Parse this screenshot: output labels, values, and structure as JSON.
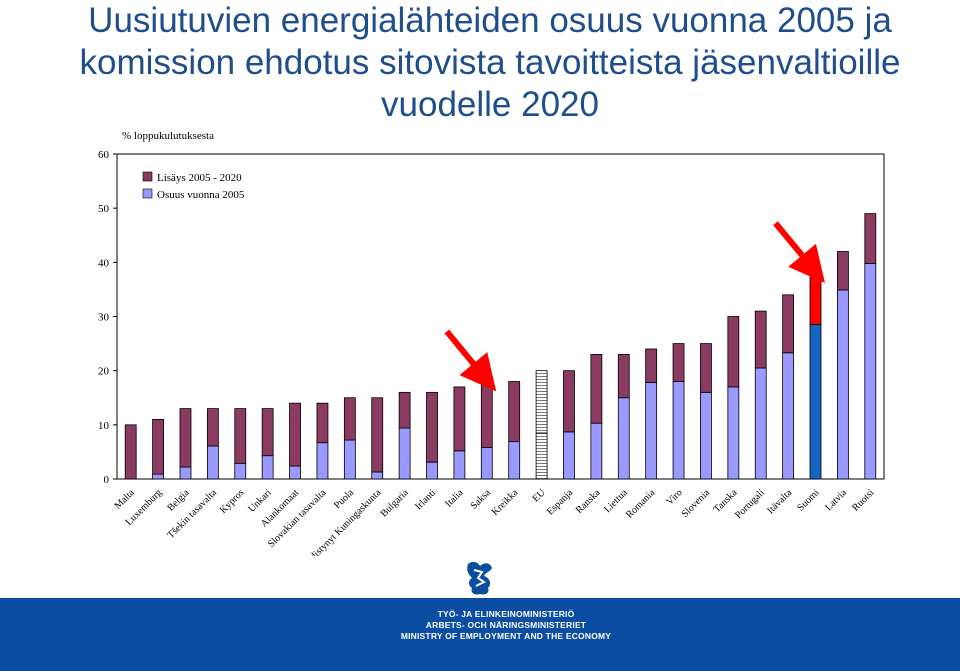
{
  "title_lines": [
    "Uusiutuvien energialähteiden osuus vuonna 2005 ja",
    "komission ehdotus sitovista tavoitteista jäsenvaltioille",
    "vuodelle 2020"
  ],
  "footer_lines": [
    "TYÖ- JA ELINKEINOMINISTERIÖ",
    "ARBETS- OCH NÄRINGSMINISTERIET",
    "MINISTRY OF EMPLOYMENT AND THE ECONOMY"
  ],
  "colors": {
    "title": "#1f4e8c",
    "increase": "#8b3a62",
    "share": "#9999ff",
    "highlight_share": "#1565c0",
    "highlight_increase": "#ff0000",
    "arrow": "#ff0000",
    "footer": "#0a4da2"
  },
  "chart_data": {
    "type": "bar",
    "stacked": true,
    "ylabel": "% loppukulutuksesta",
    "ylim": [
      0,
      60
    ],
    "yticks": [
      0,
      10,
      20,
      30,
      40,
      50,
      60
    ],
    "legend_position": "top-left",
    "grid": false,
    "categories": [
      "Malta",
      "Luxemburg",
      "Belgia",
      "Tšekin tasavalta",
      "Kypros",
      "Unkari",
      "Alankomaat",
      "Slovakian tasavalta",
      "Puola",
      "Yhdistynyt Kuningaskunta",
      "Bulgaria",
      "Irlanti",
      "Italia",
      "Saksa",
      "Kreikka",
      "EU",
      "Espanja",
      "Ranska",
      "Liettua",
      "Romania",
      "Viro",
      "Slovenia",
      "Tanska",
      "Portugali",
      "Itävalta",
      "Suomi",
      "Latvia",
      "Ruotsi"
    ],
    "series": [
      {
        "name": "Osuus vuonna 2005",
        "values": [
          0,
          0.9,
          2.2,
          6.1,
          2.9,
          4.3,
          2.4,
          6.7,
          7.2,
          1.3,
          9.4,
          3.1,
          5.2,
          5.8,
          6.9,
          8.5,
          8.7,
          10.3,
          15.0,
          17.8,
          18.0,
          16.0,
          17.0,
          20.5,
          23.3,
          28.5,
          34.9,
          39.8
        ]
      },
      {
        "name": "Lisäys 2005 - 2020",
        "values": [
          10.0,
          10.1,
          10.8,
          6.9,
          10.1,
          8.7,
          11.6,
          7.3,
          7.8,
          13.7,
          6.6,
          12.9,
          11.8,
          12.2,
          11.1,
          11.5,
          11.3,
          12.7,
          8.0,
          6.2,
          7.0,
          9.0,
          13.0,
          10.5,
          10.7,
          9.5,
          7.1,
          9.2
        ]
      }
    ],
    "annotations": [
      {
        "type": "arrow",
        "target": "Saksa"
      },
      {
        "type": "arrow",
        "target": "Suomi"
      }
    ]
  }
}
